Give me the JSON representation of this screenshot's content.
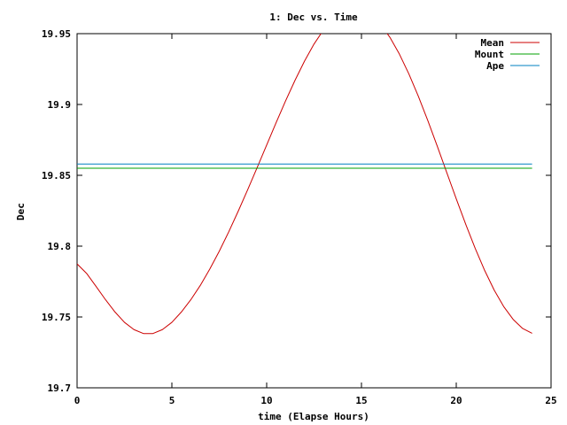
{
  "chart_data": {
    "type": "line",
    "title": "1: Dec vs. Time",
    "xlabel": "time (Elapse Hours)",
    "ylabel": "Dec",
    "xlim": [
      0,
      25
    ],
    "ylim": [
      19.7,
      19.95
    ],
    "xticks": [
      0,
      5,
      10,
      15,
      20,
      25
    ],
    "xtick_labels": [
      "0",
      "5",
      "10",
      "15",
      "20",
      "25"
    ],
    "yticks": [
      19.7,
      19.75,
      19.8,
      19.85,
      19.9,
      19.95
    ],
    "ytick_labels": [
      "19.7",
      "19.75",
      "19.8",
      "19.85",
      "19.9",
      "19.95"
    ],
    "grid": false,
    "legend_position": "top-right",
    "series": [
      {
        "name": "Mean",
        "color": "#cc0000",
        "x": [
          0,
          0.5,
          1,
          1.5,
          2,
          2.5,
          3,
          3.5,
          4,
          4.5,
          5,
          5.5,
          6,
          6.5,
          7,
          7.5,
          8,
          8.5,
          9,
          9.5,
          10,
          10.5,
          11,
          11.5,
          12,
          12.5,
          13,
          13.5,
          14,
          14.5,
          15,
          15.5,
          16,
          16.5,
          17,
          17.5,
          18,
          18.5,
          19,
          19.5,
          20,
          20.5,
          21,
          21.5,
          22,
          22.5,
          23,
          23.5,
          24
        ],
        "y": [
          19.7875,
          19.7808,
          19.7716,
          19.7622,
          19.7535,
          19.7462,
          19.7411,
          19.7383,
          19.7383,
          19.7411,
          19.7462,
          19.7535,
          19.7622,
          19.7723,
          19.7838,
          19.7964,
          19.8101,
          19.8247,
          19.8399,
          19.8555,
          19.8714,
          19.8872,
          19.9026,
          19.9172,
          19.9307,
          19.9427,
          19.9527,
          19.9604,
          19.9655,
          19.9677,
          19.967,
          19.9633,
          19.9567,
          19.9474,
          19.9356,
          19.9216,
          19.9058,
          19.8886,
          19.8705,
          19.8519,
          19.8334,
          19.8154,
          19.7984,
          19.7828,
          19.769,
          19.7574,
          19.7483,
          19.7419,
          19.7385
        ]
      },
      {
        "name": "Mount",
        "color": "#00a000",
        "x": [
          0,
          24
        ],
        "y": [
          19.855,
          19.855
        ]
      },
      {
        "name": "Ape",
        "color": "#0080c0",
        "x": [
          0,
          24
        ],
        "y": [
          19.858,
          19.858
        ]
      }
    ]
  }
}
